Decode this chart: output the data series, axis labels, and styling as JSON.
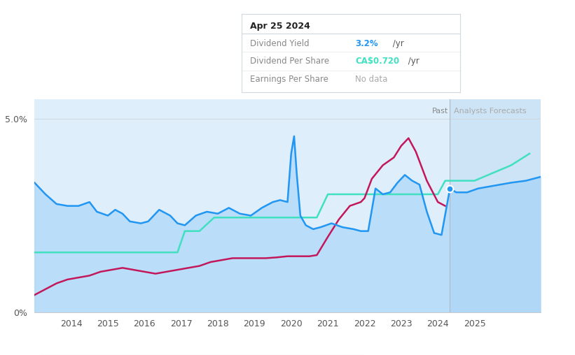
{
  "tooltip_title": "Apr 25 2024",
  "tooltip_dy": "3.2%",
  "tooltip_dps": "CA$0.720",
  "tooltip_eps": "No data",
  "past_label": "Past",
  "forecast_label": "Analysts Forecasts",
  "divider_x": 2024.33,
  "bg_color": "#ffffff",
  "plot_bg_color": "#deeefa",
  "forecast_bg_color": "#cce4f5",
  "grid_color": "#d0d8e0",
  "dividend_yield_color": "#2196f3",
  "dividend_per_share_color": "#40e0c0",
  "earnings_per_share_color": "#c2185b",
  "dy_fill_color": "#90caf9",
  "xmin": 2013.0,
  "xmax": 2026.8,
  "ymin": 0.0,
  "ymax": 5.5,
  "x_ticks": [
    2014,
    2015,
    2016,
    2017,
    2018,
    2019,
    2020,
    2021,
    2022,
    2023,
    2024,
    2025
  ],
  "dot_x": 2024.33,
  "dot_y": 3.2,
  "div_yield_x": [
    2013.0,
    2013.3,
    2013.6,
    2013.9,
    2014.2,
    2014.5,
    2014.7,
    2015.0,
    2015.2,
    2015.4,
    2015.6,
    2015.9,
    2016.1,
    2016.4,
    2016.7,
    2016.9,
    2017.1,
    2017.4,
    2017.7,
    2018.0,
    2018.3,
    2018.6,
    2018.9,
    2019.2,
    2019.5,
    2019.7,
    2019.9,
    2020.0,
    2020.08,
    2020.15,
    2020.25,
    2020.4,
    2020.6,
    2020.8,
    2021.1,
    2021.4,
    2021.7,
    2021.9,
    2022.1,
    2022.3,
    2022.5,
    2022.7,
    2022.9,
    2023.1,
    2023.3,
    2023.5,
    2023.7,
    2023.9,
    2024.1,
    2024.33,
    2024.5,
    2024.8,
    2025.1,
    2025.4,
    2025.7,
    2026.0,
    2026.4,
    2026.8
  ],
  "div_yield_y": [
    3.35,
    3.05,
    2.8,
    2.75,
    2.75,
    2.85,
    2.6,
    2.5,
    2.65,
    2.55,
    2.35,
    2.3,
    2.35,
    2.65,
    2.5,
    2.3,
    2.25,
    2.5,
    2.6,
    2.55,
    2.7,
    2.55,
    2.5,
    2.7,
    2.85,
    2.9,
    2.85,
    4.1,
    4.55,
    3.6,
    2.5,
    2.25,
    2.15,
    2.2,
    2.3,
    2.2,
    2.15,
    2.1,
    2.1,
    3.2,
    3.05,
    3.1,
    3.35,
    3.55,
    3.4,
    3.3,
    2.6,
    2.05,
    2.0,
    3.2,
    3.1,
    3.1,
    3.2,
    3.25,
    3.3,
    3.35,
    3.4,
    3.5
  ],
  "dps_x": [
    2013.0,
    2013.5,
    2014.0,
    2014.5,
    2015.0,
    2015.5,
    2016.0,
    2016.5,
    2016.9,
    2017.1,
    2017.5,
    2017.9,
    2018.2,
    2018.5,
    2018.9,
    2019.2,
    2019.5,
    2019.8,
    2020.0,
    2020.1,
    2020.2,
    2020.35,
    2020.5,
    2020.7,
    2021.0,
    2021.5,
    2022.0,
    2022.5,
    2023.0,
    2023.5,
    2024.0,
    2024.2,
    2024.33,
    2024.5,
    2025.0,
    2025.5,
    2026.0,
    2026.5
  ],
  "dps_y": [
    1.55,
    1.55,
    1.55,
    1.55,
    1.55,
    1.55,
    1.55,
    1.55,
    1.55,
    2.1,
    2.1,
    2.45,
    2.45,
    2.45,
    2.45,
    2.45,
    2.45,
    2.45,
    2.45,
    2.45,
    2.45,
    2.45,
    2.45,
    2.45,
    3.05,
    3.05,
    3.05,
    3.05,
    3.05,
    3.05,
    3.05,
    3.4,
    3.4,
    3.4,
    3.4,
    3.6,
    3.8,
    4.1
  ],
  "eps_x": [
    2013.0,
    2013.3,
    2013.6,
    2013.9,
    2014.2,
    2014.5,
    2014.8,
    2015.1,
    2015.4,
    2015.7,
    2016.0,
    2016.3,
    2016.6,
    2016.9,
    2017.2,
    2017.5,
    2017.8,
    2018.1,
    2018.4,
    2018.7,
    2019.0,
    2019.3,
    2019.6,
    2019.9,
    2020.1,
    2020.3,
    2020.5,
    2020.7,
    2021.0,
    2021.3,
    2021.6,
    2021.9,
    2022.0,
    2022.2,
    2022.5,
    2022.8,
    2023.0,
    2023.2,
    2023.4,
    2023.7,
    2024.0,
    2024.2
  ],
  "eps_y": [
    0.45,
    0.6,
    0.75,
    0.85,
    0.9,
    0.95,
    1.05,
    1.1,
    1.15,
    1.1,
    1.05,
    1.0,
    1.05,
    1.1,
    1.15,
    1.2,
    1.3,
    1.35,
    1.4,
    1.4,
    1.4,
    1.4,
    1.42,
    1.45,
    1.45,
    1.45,
    1.45,
    1.48,
    1.95,
    2.4,
    2.75,
    2.85,
    2.95,
    3.45,
    3.8,
    4.0,
    4.3,
    4.5,
    4.15,
    3.4,
    2.85,
    2.75
  ]
}
